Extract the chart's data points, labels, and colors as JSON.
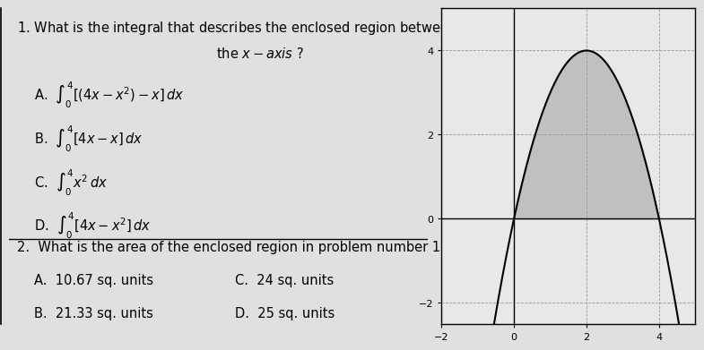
{
  "paper_color": "#e0e0e0",
  "options_q1": [
    "A.  $\\int_0^4[(4x - x^2) - x]\\,dx$",
    "B.  $\\int_0^4[4x - x]\\,dx$",
    "C.  $\\int_0^4 x^2\\, dx$",
    "D.  $\\int_0^4 [4x - x^2]\\, dx$"
  ],
  "options_q2_left": [
    "A.  10.67 sq. units",
    "B.  21.33 sq. units"
  ],
  "options_q2_right": [
    "C.  24 sq. units",
    "D.  25 sq. units"
  ],
  "graph_xlim": [
    -2,
    5
  ],
  "graph_ylim": [
    -2.5,
    5
  ],
  "graph_xticks": [
    -2,
    0,
    2,
    4
  ],
  "graph_yticks": [
    -2,
    0,
    2,
    4
  ],
  "graph_bg": "#e8e8e8",
  "curve_color": "#000000",
  "fill_color": "#a0a0a0",
  "grid_color": "#999999",
  "font_size_main": 10.5,
  "font_size_options": 10.5
}
